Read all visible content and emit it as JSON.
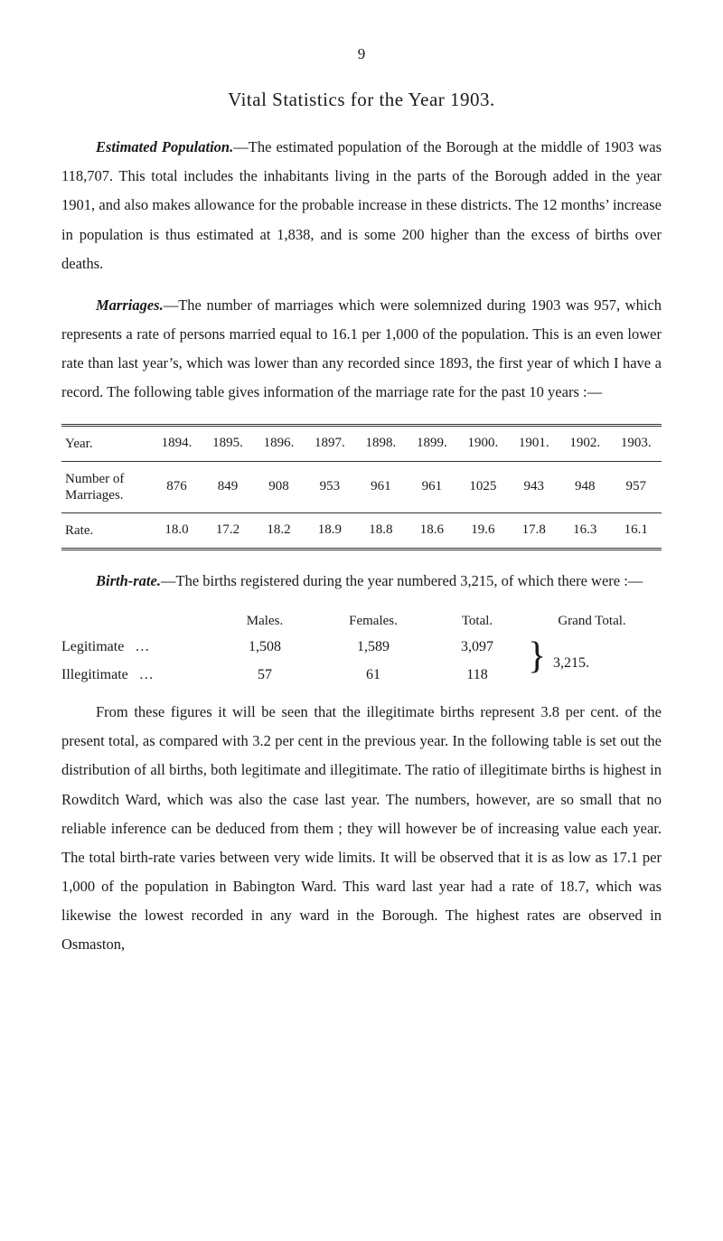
{
  "page_number": "9",
  "title": "Vital Statistics for the Year 1903.",
  "para1": {
    "lead": "Estimated Population.",
    "text": "—The estimated population of the Borough at the middle of 1903 was 118,707. This total includes the in­habitants living in the parts of the Borough added in the year 1901, and also makes allowance for the probable increase in these districts. The 12 months’ increase in population is thus estimated at 1,838, and is some 200 higher than the excess of births over deaths."
  },
  "para2": {
    "lead": "Marriages.",
    "text": "—The number of marriages which were solemnized during 1903 was 957, which represents a rate of persons married equal to 16.1 per 1,000 of the population. This is an even lower rate than last year’s, which was lower than any recorded since 1893, the first year of which I have a record. The following table gives information of the marriage rate for the past 10 years :—"
  },
  "table": {
    "columns": [
      "Year.",
      "1894.",
      "1895.",
      "1896.",
      "1897.",
      "1898.",
      "1899.",
      "1900.",
      "1901.",
      "1902.",
      "1903."
    ],
    "rows": [
      {
        "label": "Number of<br>Marriages.",
        "values": [
          "876",
          "849",
          "908",
          "953",
          "961",
          "961",
          "1025",
          "943",
          "948",
          "957"
        ]
      },
      {
        "label": "Rate.",
        "values": [
          "18.0",
          "17.2",
          "18.2",
          "18.9",
          "18.8",
          "18.6",
          "19.6",
          "17.8",
          "16.3",
          "16.1"
        ]
      }
    ]
  },
  "para3": {
    "lead": "Birth-rate.",
    "text": "—The births registered during the year numbered 3,215, of which there were :—"
  },
  "ledger": {
    "headers": [
      "",
      "Males.",
      "Females.",
      "Total.",
      "Grand Total."
    ],
    "rows": [
      {
        "label": "Legitimate",
        "dots": "…",
        "males": "1,508",
        "females": "1,589",
        "total": "3,097"
      },
      {
        "label": "Illegitimate",
        "dots": "…",
        "males": "57",
        "females": "61",
        "total": "118"
      }
    ],
    "grand_total": "3,215."
  },
  "para4": "From these figures it will be seen that the illegitimate births represent 3.8 per cent. of the present total, as compared with 3.2 per cent in the previous year. In the following table is set out the distribution of all births, both legitimate and illegitimate. The ratio of illegitimate births is highest in Rowditch Ward, which was also the case last year. The numbers, however, are so small that no reliable inference can be deduced from them ; they will however be of increasing value each year. The total birth-rate varies between very wide limits. It will be observed that it is as low as 17.1 per 1,000 of the population in Babington Ward. This ward last year had a rate of 18.7, which was likewise the lowest recorded in any ward in the Borough. The highest rates are observed in Osmaston,"
}
